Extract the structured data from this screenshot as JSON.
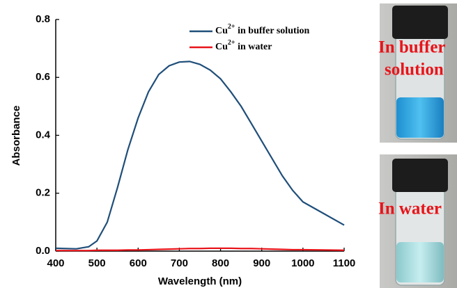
{
  "chart_data": {
    "type": "line",
    "x": [
      400,
      450,
      480,
      500,
      525,
      550,
      575,
      600,
      625,
      650,
      675,
      700,
      725,
      750,
      775,
      800,
      825,
      850,
      875,
      900,
      925,
      950,
      975,
      1000,
      1050,
      1100
    ],
    "series": [
      {
        "name": "Cu2+ in buffer solution",
        "color": "#1f4e79",
        "values": [
          0.01,
          0.008,
          0.015,
          0.035,
          0.1,
          0.22,
          0.35,
          0.46,
          0.55,
          0.61,
          0.64,
          0.653,
          0.655,
          0.645,
          0.625,
          0.595,
          0.55,
          0.5,
          0.44,
          0.38,
          0.32,
          0.26,
          0.21,
          0.17,
          0.13,
          0.09
        ]
      },
      {
        "name": "Cu2+ in water",
        "color": "#e8141a",
        "values": [
          0.002,
          0.002,
          0.002,
          0.003,
          0.003,
          0.003,
          0.004,
          0.004,
          0.005,
          0.006,
          0.007,
          0.008,
          0.009,
          0.009,
          0.01,
          0.01,
          0.01,
          0.009,
          0.009,
          0.008,
          0.007,
          0.006,
          0.005,
          0.005,
          0.004,
          0.003
        ]
      }
    ],
    "xlabel": "Wavelength (nm)",
    "ylabel": "Absorbance",
    "xlim": [
      400,
      1100
    ],
    "ylim": [
      0,
      0.8
    ],
    "xticks": [
      400,
      500,
      600,
      700,
      800,
      900,
      1000,
      1100
    ],
    "yticks": [
      {
        "value": 0,
        "label": "0.0"
      },
      0.2,
      0.4,
      0.6,
      0.8
    ],
    "legend": "upper right"
  },
  "photos": [
    {
      "label_lines": [
        "In buffer",
        "solution"
      ]
    },
    {
      "label_lines": [
        "In water"
      ]
    }
  ]
}
